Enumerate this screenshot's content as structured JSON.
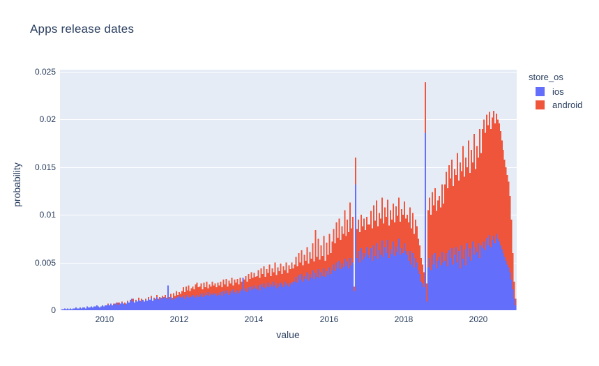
{
  "title": "Apps release dates",
  "axes": {
    "x": {
      "title": "value",
      "range": [
        2008.81,
        2021.02
      ],
      "tick_values": [
        2010,
        2012,
        2014,
        2016,
        2018,
        2020
      ],
      "tick_labels": [
        "2010",
        "2012",
        "2014",
        "2016",
        "2018",
        "2020"
      ]
    },
    "y": {
      "title": "probability",
      "range": [
        0,
        0.02522
      ],
      "tick_values": [
        0,
        0.005,
        0.01,
        0.015,
        0.02,
        0.025
      ],
      "tick_labels": [
        "0",
        "0.005",
        "0.01",
        "0.015",
        "0.02",
        "0.025"
      ]
    }
  },
  "legend": {
    "title": "store_os",
    "items": [
      {
        "label": "ios",
        "color": "#636EFA"
      },
      {
        "label": "android",
        "color": "#EF553B"
      }
    ]
  },
  "colors": {
    "plot_background": "#e5ecf6",
    "grid": "#ffffff",
    "text": "#2a3f5f",
    "ios": "#636EFA",
    "android": "#EF553B"
  },
  "chart_data": {
    "type": "bar",
    "subtype": "overlaid-histogram",
    "histnorm": "probability",
    "title": "Apps release dates",
    "xlabel": "value",
    "ylabel": "probability",
    "xlim": [
      2008.81,
      2021.02
    ],
    "ylim": [
      0,
      0.02522
    ],
    "grid": true,
    "legend_position": "right",
    "bin_start": 2008.85,
    "bin_width_years": 0.0372,
    "value_unit": 0.0001,
    "note": "values are probability in units of 1e-4, estimated from pixels; android drawn behind ios",
    "series": [
      {
        "name": "android",
        "color": "#EF553B",
        "values": [
          0,
          0,
          0,
          0,
          0,
          0,
          0,
          0,
          0,
          0,
          0,
          0,
          0,
          0,
          0,
          0,
          0,
          0,
          1,
          0,
          1,
          0,
          1,
          1,
          1,
          1,
          2,
          1,
          2,
          1,
          2,
          2,
          3,
          7,
          3,
          6,
          4,
          7,
          5,
          8,
          4,
          8,
          5,
          9,
          6,
          8,
          6,
          10,
          7,
          11,
          8,
          12,
          7,
          11,
          9,
          13,
          9,
          12,
          10,
          9,
          12,
          10,
          14,
          11,
          15,
          10,
          13,
          12,
          16,
          11,
          14,
          13,
          15,
          12,
          16,
          13,
          12,
          14,
          17,
          13,
          18,
          15,
          20,
          16,
          19,
          17,
          20,
          24,
          19,
          25,
          21,
          26,
          20,
          23,
          25,
          22,
          27,
          29,
          24,
          25,
          28,
          22,
          29,
          24,
          30,
          23,
          27,
          25,
          30,
          26,
          28,
          24,
          29,
          26,
          30,
          24,
          32,
          27,
          33,
          25,
          31,
          28,
          34,
          26,
          32,
          29,
          33,
          27,
          34,
          30,
          28,
          32,
          36,
          30,
          38,
          33,
          40,
          34,
          39,
          35,
          36,
          42,
          34,
          44,
          38,
          46,
          35,
          43,
          39,
          48,
          36,
          44,
          40,
          50,
          37,
          45,
          41,
          49,
          38,
          46,
          42,
          50,
          39,
          47,
          43,
          50,
          44,
          48,
          56,
          46,
          60,
          50,
          63,
          47,
          58,
          52,
          66,
          49,
          61,
          54,
          70,
          51,
          84,
          56,
          75,
          53,
          68,
          57,
          78,
          52,
          71,
          58,
          80,
          60,
          72,
          85,
          70,
          92,
          76,
          96,
          74,
          88,
          80,
          105,
          78,
          95,
          82,
          113,
          86,
          98,
          25,
          160,
          85,
          95,
          82,
          100,
          88,
          96,
          84,
          98,
          90,
          90,
          104,
          86,
          110,
          94,
          115,
          88,
          102,
          96,
          118,
          91,
          108,
          98,
          116,
          89,
          105,
          95,
          112,
          92,
          109,
          99,
          118,
          93,
          106,
          100,
          114,
          96,
          100,
          92,
          108,
          86,
          102,
          80,
          95,
          88,
          75,
          68,
          55,
          48,
          40,
          239,
          28,
          105,
          118,
          100,
          124,
          110,
          128,
          104,
          115,
          120,
          108,
          132,
          112,
          132,
          145,
          128,
          152,
          138,
          158,
          130,
          148,
          142,
          165,
          136,
          155,
          146,
          172,
          140,
          160,
          150,
          178,
          144,
          168,
          155,
          185,
          148,
          172,
          160,
          190,
          165,
          190,
          200,
          186,
          205,
          194,
          208,
          190,
          202,
          209,
          196,
          206,
          200,
          196,
          188,
          178,
          168,
          158,
          150,
          142,
          135,
          120,
          95,
          60,
          30,
          12
        ]
      },
      {
        "name": "ios",
        "color": "#636EFA",
        "values": [
          1,
          1,
          2,
          1,
          2,
          1,
          2,
          1,
          2,
          2,
          3,
          2,
          2,
          3,
          2,
          3,
          3,
          2,
          4,
          3,
          3,
          4,
          3,
          4,
          4,
          5,
          4,
          3,
          4,
          5,
          4,
          5,
          5,
          6,
          5,
          7,
          5,
          6,
          7,
          6,
          8,
          6,
          7,
          8,
          7,
          6,
          7,
          9,
          8,
          10,
          12,
          9,
          8,
          10,
          9,
          11,
          10,
          9,
          11,
          9,
          11,
          10,
          12,
          11,
          13,
          10,
          12,
          11,
          14,
          12,
          11,
          13,
          12,
          14,
          13,
          12,
          26,
          12,
          14,
          11,
          13,
          12,
          14,
          13,
          15,
          14,
          13,
          15,
          12,
          16,
          14,
          13,
          15,
          14,
          16,
          15,
          13,
          16,
          14,
          15,
          17,
          14,
          18,
          15,
          16,
          19,
          15,
          17,
          16,
          18,
          17,
          15,
          18,
          16,
          19,
          15,
          20,
          17,
          21,
          18,
          16,
          20,
          18,
          22,
          19,
          17,
          21,
          18,
          20,
          22,
          34,
          20,
          23,
          19,
          24,
          21,
          25,
          22,
          26,
          23,
          22,
          26,
          21,
          27,
          24,
          28,
          23,
          25,
          29,
          24,
          27,
          25,
          30,
          26,
          23,
          28,
          25,
          29,
          27,
          24,
          30,
          26,
          28,
          25,
          29,
          27,
          30,
          30,
          35,
          29,
          37,
          32,
          38,
          30,
          36,
          33,
          40,
          31,
          38,
          34,
          42,
          33,
          39,
          35,
          43,
          34,
          40,
          36,
          44,
          35,
          41,
          37,
          45,
          38,
          42,
          48,
          41,
          50,
          44,
          52,
          43,
          49,
          45,
          54,
          46,
          51,
          44,
          55,
          47,
          50,
          20,
          132,
          55,
          62,
          50,
          65,
          53,
          60,
          56,
          66,
          58,
          55,
          65,
          52,
          68,
          57,
          70,
          54,
          63,
          58,
          73,
          56,
          66,
          60,
          74,
          55,
          64,
          59,
          72,
          57,
          67,
          61,
          75,
          58,
          65,
          60,
          70,
          62,
          58,
          52,
          62,
          48,
          60,
          45,
          55,
          50,
          42,
          38,
          30,
          28,
          24,
          186,
          9,
          45,
          55,
          42,
          58,
          48,
          60,
          44,
          52,
          56,
          47,
          61,
          50,
          52,
          60,
          46,
          63,
          55,
          65,
          48,
          58,
          66,
          50,
          62,
          44,
          68,
          54,
          64,
          47,
          70,
          56,
          65,
          52,
          72,
          58,
          66,
          61,
          70,
          55,
          68,
          65,
          72,
          63,
          76,
          68,
          79,
          66,
          74,
          78,
          70,
          80,
          75,
          72,
          68,
          64,
          60,
          56,
          52,
          48,
          45,
          40,
          32,
          22,
          12,
          5
        ]
      }
    ]
  }
}
